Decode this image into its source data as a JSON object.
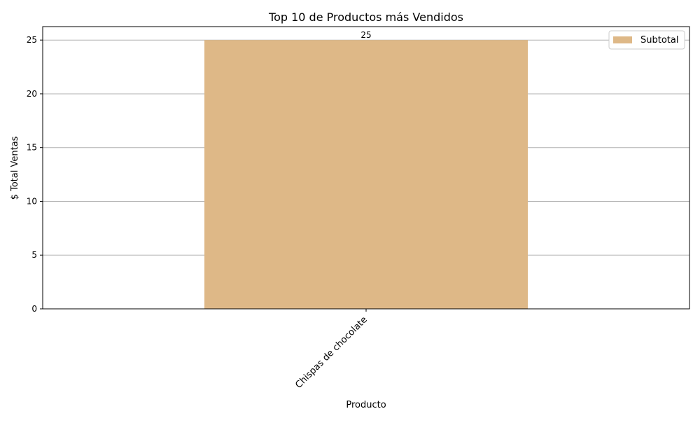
{
  "chart_data": {
    "type": "bar",
    "title": "Top 10 de Productos más Vendidos",
    "xlabel": "Producto",
    "ylabel": "$ Total Ventas",
    "categories": [
      "Chispas de chocolate"
    ],
    "series": [
      {
        "name": "Subtotal",
        "values": [
          25
        ],
        "color": "#deb887"
      }
    ],
    "data_labels": [
      "25"
    ],
    "yticks": [
      0,
      5,
      10,
      15,
      20,
      25
    ],
    "ylim": [
      0,
      26.25
    ],
    "grid": "y",
    "legend_position": "top-right",
    "x_tick_rotation": "45 degrees"
  }
}
